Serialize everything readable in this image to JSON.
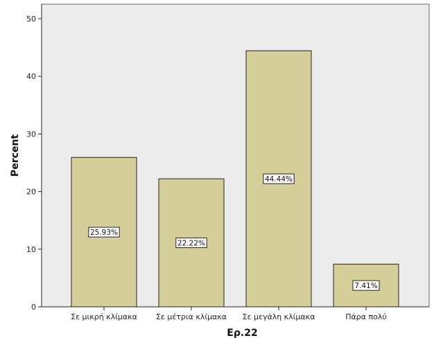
{
  "chart_data": {
    "type": "bar",
    "categories": [
      "Σε μικρή κλίμακα",
      "Σε μέτρια κλίμακα",
      "Σε μεγάλη κλίμακα",
      "Πάρα πολύ"
    ],
    "values": [
      25.93,
      22.22,
      44.44,
      7.41
    ],
    "data_labels": [
      "25.93%",
      "22.22%",
      "44.44%",
      "7.41%"
    ],
    "xlabel": "Ερ.22",
    "ylabel": "Percent",
    "ylim": [
      0,
      50
    ],
    "yticks": [
      0,
      10,
      20,
      30,
      40,
      50
    ],
    "grid": false,
    "colors": {
      "plot_background": "#ececec",
      "bar_fill": "#d4ce99",
      "bar_stroke": "#222222",
      "label_box": "#ffffff"
    }
  }
}
